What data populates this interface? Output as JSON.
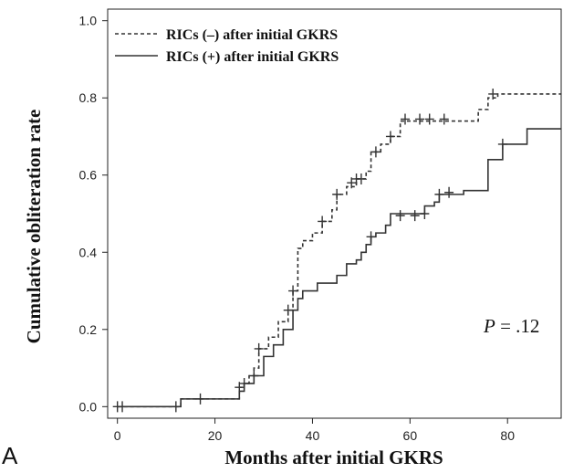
{
  "chart_data": {
    "type": "line",
    "panel_label": "A",
    "xlabel": "Months after initial GKRS",
    "ylabel": "Cumulative obliteration rate",
    "xlim": [
      -2,
      91
    ],
    "ylim": [
      -0.03,
      1.03
    ],
    "x_ticks": [
      "0",
      "20",
      "40",
      "60",
      "80"
    ],
    "y_ticks": [
      "0.0",
      "0.2",
      "0.4",
      "0.6",
      "0.8",
      "1.0"
    ],
    "x_tick_values": [
      0,
      20,
      40,
      60,
      80
    ],
    "y_tick_values": [
      0.0,
      0.2,
      0.4,
      0.6,
      0.8,
      1.0
    ],
    "annotation": {
      "p_label": "P",
      "p_value": " = .12"
    },
    "legend_position": "top-left",
    "series": [
      {
        "name": "RICs (–) after initial GKRS",
        "style": "dashed",
        "color": "#333333",
        "steps": [
          [
            0,
            0.0
          ],
          [
            12,
            0.0
          ],
          [
            13,
            0.02
          ],
          [
            24,
            0.02
          ],
          [
            25,
            0.05
          ],
          [
            26,
            0.06
          ],
          [
            27,
            0.08
          ],
          [
            28,
            0.1
          ],
          [
            29,
            0.15
          ],
          [
            31,
            0.18
          ],
          [
            33,
            0.22
          ],
          [
            35,
            0.25
          ],
          [
            36,
            0.3
          ],
          [
            37,
            0.41
          ],
          [
            38,
            0.43
          ],
          [
            40,
            0.45
          ],
          [
            42,
            0.48
          ],
          [
            44,
            0.51
          ],
          [
            45,
            0.55
          ],
          [
            47,
            0.57
          ],
          [
            49,
            0.59
          ],
          [
            51,
            0.61
          ],
          [
            52,
            0.66
          ],
          [
            54,
            0.68
          ],
          [
            56,
            0.7
          ],
          [
            58,
            0.74
          ],
          [
            72,
            0.74
          ],
          [
            74,
            0.77
          ],
          [
            76,
            0.8
          ],
          [
            78,
            0.81
          ],
          [
            91,
            0.81
          ]
        ],
        "censor": [
          [
            0,
            0.0
          ],
          [
            1,
            0.0
          ],
          [
            12,
            0.0
          ],
          [
            17,
            0.02
          ],
          [
            25,
            0.05
          ],
          [
            26,
            0.06
          ],
          [
            29,
            0.15
          ],
          [
            35,
            0.25
          ],
          [
            36,
            0.3
          ],
          [
            42,
            0.48
          ],
          [
            45,
            0.55
          ],
          [
            48,
            0.58
          ],
          [
            49,
            0.59
          ],
          [
            50,
            0.59
          ],
          [
            53,
            0.66
          ],
          [
            56,
            0.7
          ],
          [
            59,
            0.745
          ],
          [
            62,
            0.745
          ],
          [
            64,
            0.745
          ],
          [
            67,
            0.745
          ],
          [
            77,
            0.81
          ]
        ]
      },
      {
        "name": "RICs (+) after initial GKRS",
        "style": "solid",
        "color": "#333333",
        "steps": [
          [
            0,
            0.0
          ],
          [
            12,
            0.0
          ],
          [
            13,
            0.02
          ],
          [
            24,
            0.02
          ],
          [
            25,
            0.04
          ],
          [
            26,
            0.06
          ],
          [
            28,
            0.08
          ],
          [
            30,
            0.13
          ],
          [
            32,
            0.16
          ],
          [
            34,
            0.2
          ],
          [
            36,
            0.25
          ],
          [
            37,
            0.28
          ],
          [
            38,
            0.3
          ],
          [
            41,
            0.32
          ],
          [
            45,
            0.34
          ],
          [
            47,
            0.37
          ],
          [
            49,
            0.38
          ],
          [
            50,
            0.4
          ],
          [
            51,
            0.42
          ],
          [
            52,
            0.44
          ],
          [
            53,
            0.45
          ],
          [
            55,
            0.47
          ],
          [
            56,
            0.5
          ],
          [
            62,
            0.5
          ],
          [
            63,
            0.52
          ],
          [
            65,
            0.53
          ],
          [
            66,
            0.55
          ],
          [
            71,
            0.56
          ],
          [
            76,
            0.64
          ],
          [
            79,
            0.68
          ],
          [
            84,
            0.72
          ],
          [
            91,
            0.72
          ]
        ],
        "censor": [
          [
            28,
            0.08
          ],
          [
            52,
            0.44
          ],
          [
            58,
            0.495
          ],
          [
            61,
            0.495
          ],
          [
            63,
            0.5
          ],
          [
            66,
            0.55
          ],
          [
            68,
            0.555
          ],
          [
            79,
            0.68
          ]
        ]
      }
    ]
  }
}
